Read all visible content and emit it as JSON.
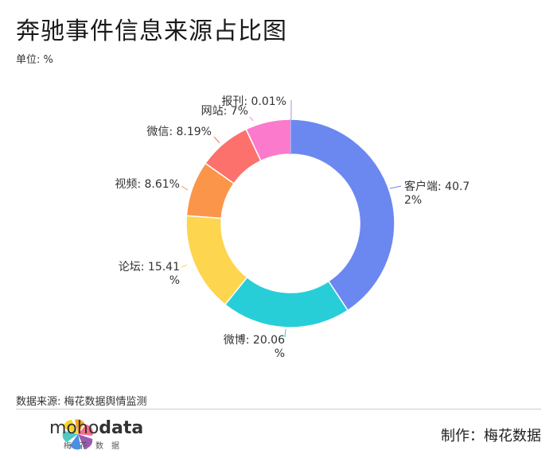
{
  "title": "奔驰事件信息来源占比图",
  "unit": "单位: %",
  "source": "数据来源: 梅花数据舆情监测",
  "logo": {
    "brand_light": "moho",
    "brand_bold": "data",
    "sub": "梅花数据"
  },
  "credit": "制作：梅花数据",
  "chart_data": {
    "type": "pie",
    "donut": true,
    "series": [
      {
        "name": "客户端",
        "value": 40.72,
        "label_lines": [
          "客户端: 40.7",
          "2%"
        ],
        "color": "#6b88f0"
      },
      {
        "name": "微博",
        "value": 20.06,
        "label_lines": [
          "微博: 20.06",
          "%"
        ],
        "color": "#27ced8"
      },
      {
        "name": "论坛",
        "value": 15.41,
        "label_lines": [
          "论坛: 15.41",
          "%"
        ],
        "color": "#fdd54f"
      },
      {
        "name": "视频",
        "value": 8.61,
        "label_lines": [
          "视频: 8.61%"
        ],
        "color": "#fb9549"
      },
      {
        "name": "微信",
        "value": 8.19,
        "label_lines": [
          "微信: 8.19%"
        ],
        "color": "#fc716c"
      },
      {
        "name": "网站",
        "value": 7,
        "label_lines": [
          "网站: 7%"
        ],
        "color": "#fb7acb"
      },
      {
        "name": "报刊",
        "value": 0.01,
        "label_lines": [
          "报刊: 0.01%"
        ],
        "color": "#b28ee8"
      }
    ]
  }
}
